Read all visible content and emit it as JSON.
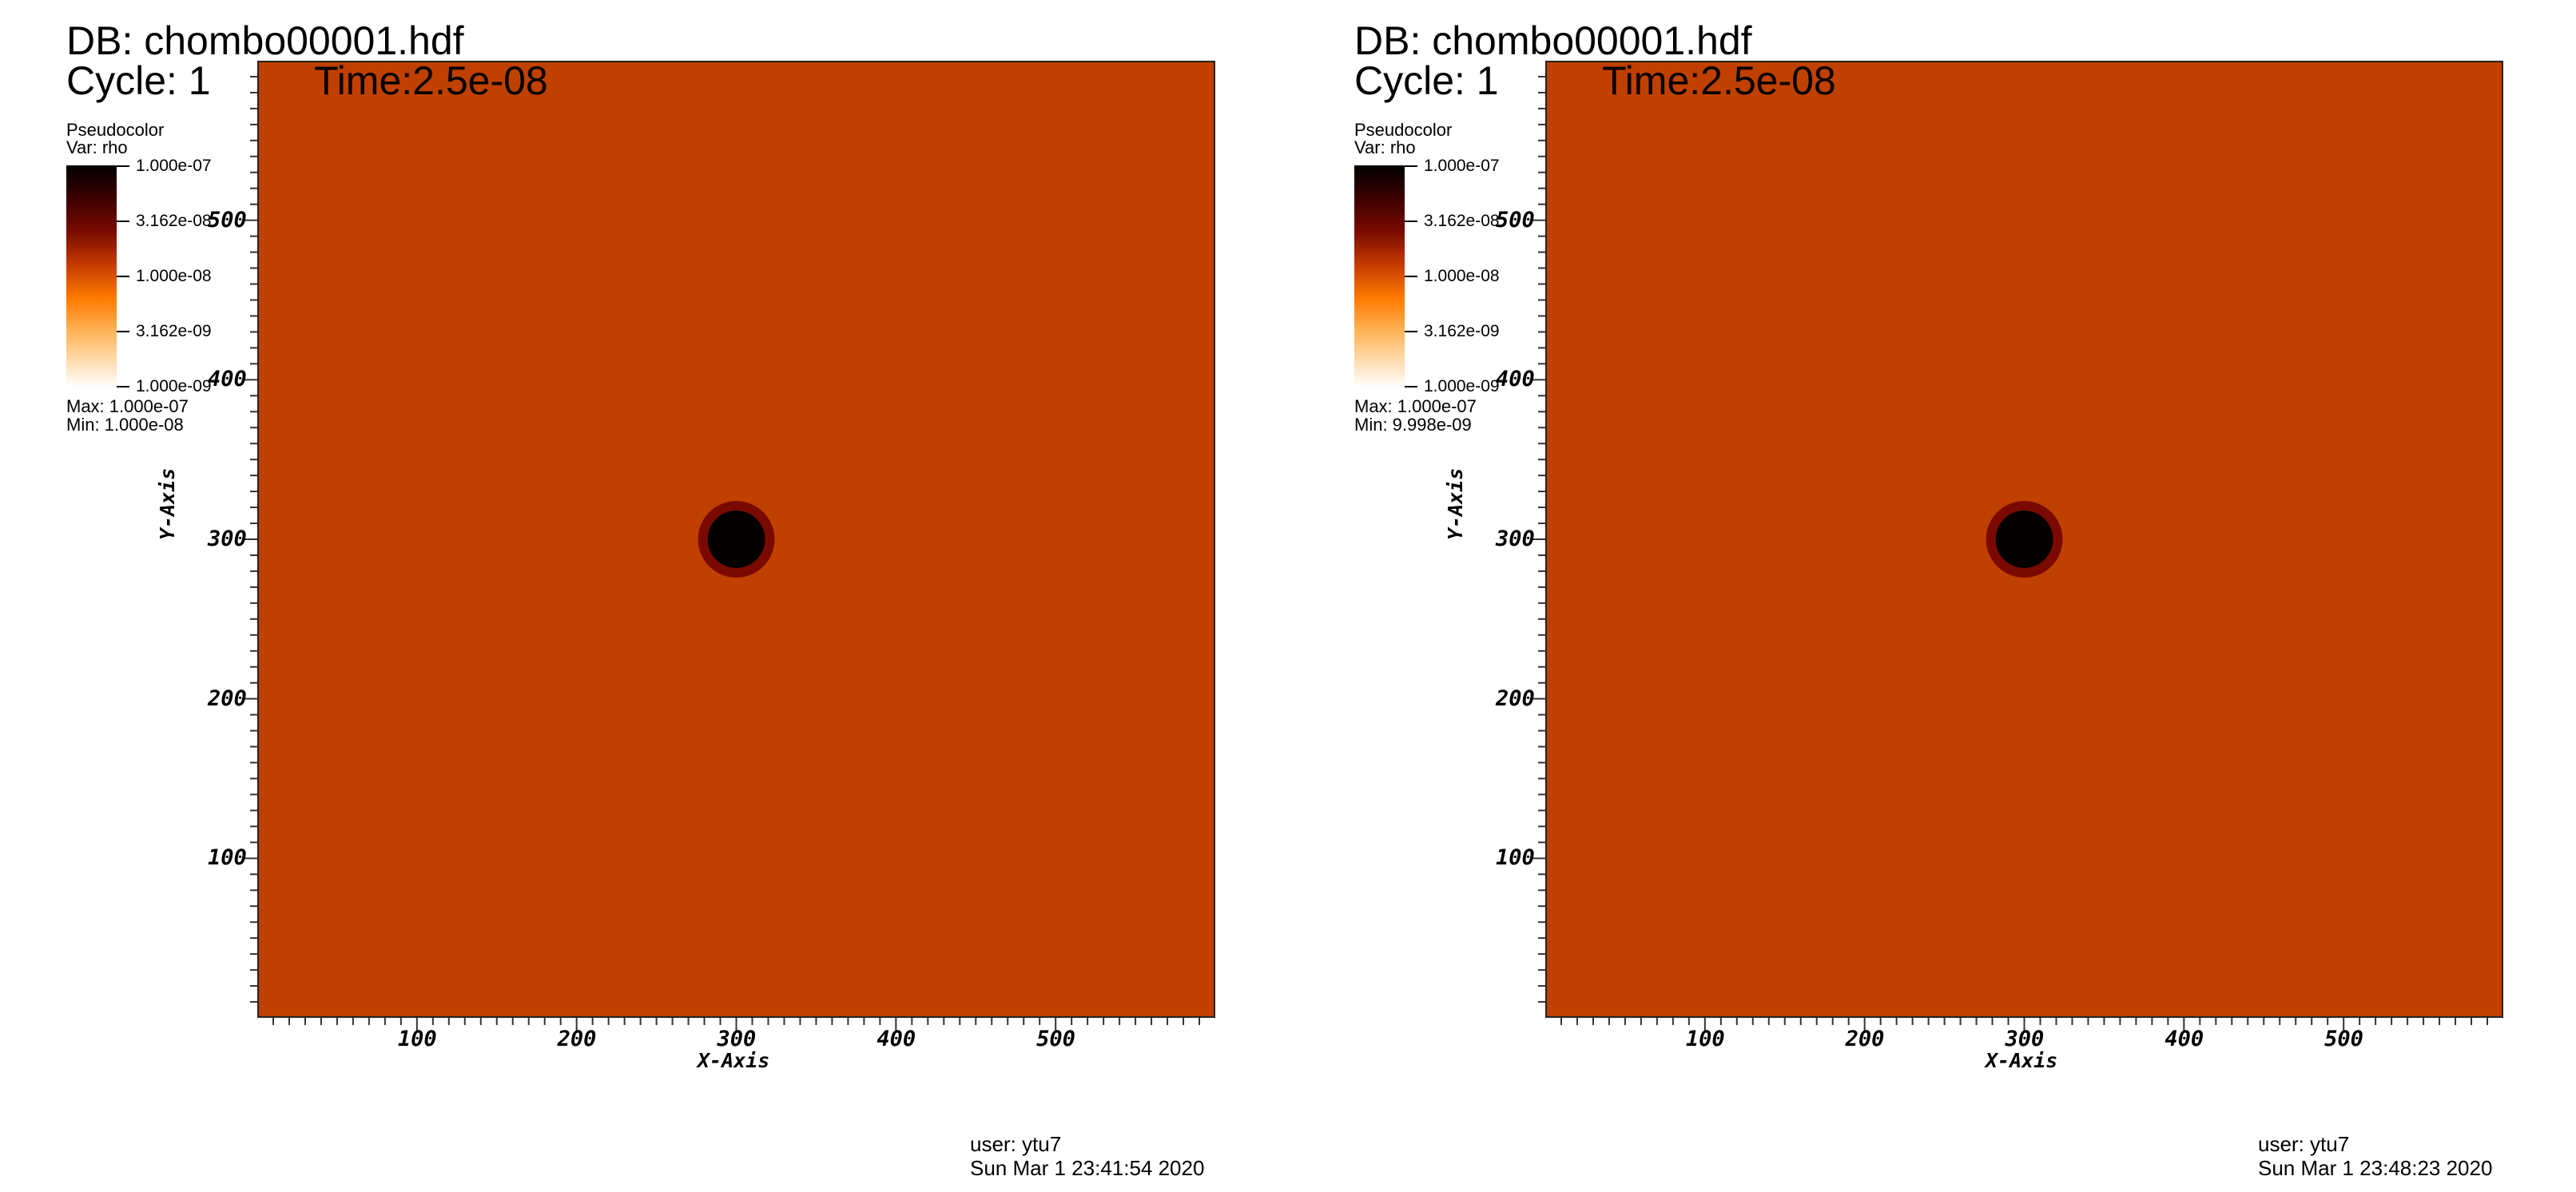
{
  "panels": [
    {
      "db_label": "DB: chombo00001.hdf",
      "cycle_label": "Cycle: 1",
      "time_label": "Time:2.5e-08",
      "legend": {
        "title": "Pseudocolor",
        "var": "Var: rho",
        "ticks": [
          "1.000e-07",
          "3.162e-08",
          "1.000e-08",
          "3.162e-09",
          "1.000e-09"
        ],
        "max": "Max:  1.000e-07",
        "min": "Min:  1.000e-08"
      },
      "user": "user: ytu7",
      "date": "Sun Mar  1 23:41:54 2020"
    },
    {
      "db_label": "DB: chombo00001.hdf",
      "cycle_label": "Cycle: 1",
      "time_label": "Time:2.5e-08",
      "legend": {
        "title": "Pseudocolor",
        "var": "Var: rho",
        "ticks": [
          "1.000e-07",
          "3.162e-08",
          "1.000e-08",
          "3.162e-09",
          "1.000e-09"
        ],
        "max": "Max:  1.000e-07",
        "min": "Min:  9.998e-09"
      },
      "user": "user: ytu7",
      "date": "Sun Mar  1 23:48:23 2020"
    }
  ],
  "chart_data": [
    {
      "type": "heatmap",
      "xlabel": "X-Axis",
      "ylabel": "Y-Axis",
      "xlim": [
        0,
        600
      ],
      "ylim": [
        0,
        600
      ],
      "x_ticks": [
        100,
        200,
        300,
        400,
        500
      ],
      "y_ticks": [
        100,
        200,
        300,
        400,
        500
      ],
      "background_color": "#c04000",
      "feature": {
        "shape": "circle",
        "center": [
          300,
          300
        ],
        "radius": 24,
        "core_color": "#050000",
        "rim_color": "#7a0a00"
      },
      "colorbar": {
        "scale": "log",
        "min": 1e-09,
        "max": 1e-07
      }
    },
    {
      "type": "heatmap",
      "xlabel": "X-Axis",
      "ylabel": "Y-Axis",
      "xlim": [
        0,
        600
      ],
      "ylim": [
        0,
        600
      ],
      "x_ticks": [
        100,
        200,
        300,
        400,
        500
      ],
      "y_ticks": [
        100,
        200,
        300,
        400,
        500
      ],
      "background_color": "#c04000",
      "feature": {
        "shape": "circle",
        "center": [
          300,
          300
        ],
        "radius": 24,
        "core_color": "#050000",
        "rim_color": "#7a0a00"
      },
      "colorbar": {
        "scale": "log",
        "min": 1e-09,
        "max": 1e-07
      }
    }
  ]
}
